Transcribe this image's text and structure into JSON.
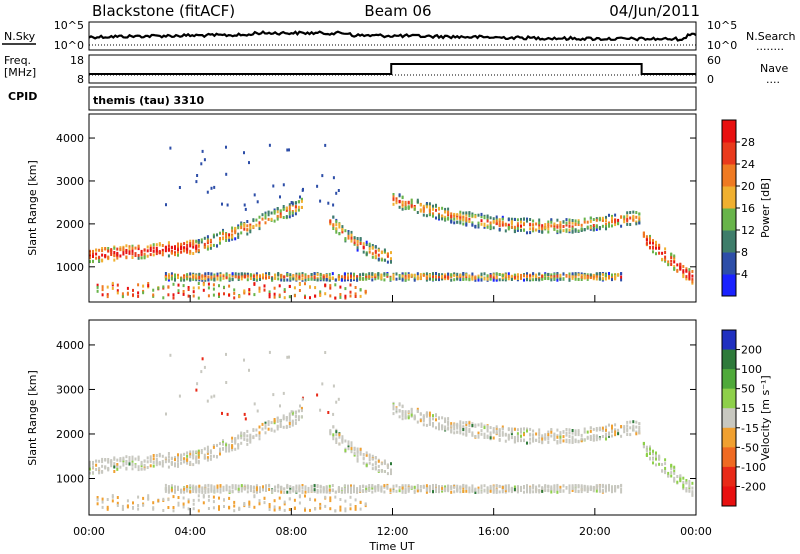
{
  "header": {
    "station": "Blackstone (fitACF)",
    "beam": "Beam 06",
    "date": "04/Jun/2011"
  },
  "noise_panel": {
    "left_label": "N.Sky",
    "left_ticks": [
      "10^5",
      "10^0"
    ],
    "right_ticks": [
      "10^5",
      "10^0"
    ],
    "right_label": "N.Search",
    "right_legend": "........"
  },
  "freq_panel": {
    "left_label_line1": "Freq.",
    "left_label_line2": "[MHz]",
    "left_ticks": [
      "18",
      "8"
    ],
    "right_ticks": [
      "60",
      "0"
    ],
    "right_label": "Nave",
    "right_legend": "...."
  },
  "cpid": {
    "label": "CPID",
    "value": "themis (tau) 3310"
  },
  "x_axis": {
    "label": "Time UT",
    "ticks": [
      "00:00",
      "04:00",
      "08:00",
      "12:00",
      "16:00",
      "20:00",
      "00:00"
    ]
  },
  "chart_data": [
    {
      "type": "heatmap",
      "title": "",
      "ylabel": "Slant Range [km]",
      "y_ticks": [
        "1000",
        "2000",
        "3000",
        "4000"
      ],
      "ylim": [
        180,
        4560
      ],
      "xlim_hours": [
        0,
        24
      ],
      "colorbar": {
        "label": "Power [dB]",
        "ticks": [
          "4",
          "8",
          "12",
          "16",
          "20",
          "24",
          "28"
        ],
        "colors": [
          "#1a22ff",
          "#2d4ea8",
          "#3e7d6a",
          "#68b44a",
          "#f0b030",
          "#ef7a22",
          "#e93a1c",
          "#e81010"
        ]
      },
      "echo_bands": [
        {
          "name": "f-region main",
          "t0": 0,
          "t1": 4.3,
          "r_center": 1300,
          "r_start_end": [
            1300,
            1500
          ]
        },
        {
          "name": "f-region rising",
          "t0": 4.3,
          "t1": 8.5,
          "r_center": 1500,
          "r_start_end": [
            1500,
            2500
          ]
        },
        {
          "name": "evening arc",
          "t0": 9.5,
          "t1": 11.9,
          "r_center": 1600,
          "r_start_end": [
            2100,
            1300
          ]
        },
        {
          "name": "night band",
          "t0": 12,
          "t1": 21.8,
          "r_center": 1900,
          "r_start_end": [
            2500,
            2100
          ]
        },
        {
          "name": "low range band",
          "t0": 3,
          "t1": 21,
          "r_center": 800,
          "r_start_end": [
            800,
            800
          ]
        },
        {
          "name": "early morning",
          "t0": 21.9,
          "t1": 24,
          "r_center": 1300,
          "r_start_end": [
            1700,
            700
          ]
        }
      ]
    },
    {
      "type": "heatmap",
      "title": "",
      "ylabel": "Slant Range [km]",
      "y_ticks": [
        "1000",
        "2000",
        "3000",
        "4000"
      ],
      "ylim": [
        180,
        4560
      ],
      "xlim_hours": [
        0,
        24
      ],
      "colorbar": {
        "label": "Velocity [m s⁻¹]",
        "ticks": [
          "200",
          "100",
          "50",
          "15",
          "-15",
          "-50",
          "-100",
          "-200"
        ],
        "colors": [
          "#2030c0",
          "#2e7a3a",
          "#4fa93a",
          "#8ed04a",
          "#c8c8c0",
          "#f0a030",
          "#ef6a22",
          "#e82a18",
          "#e81010"
        ]
      }
    }
  ],
  "colors": {
    "ground_scatter": "#c8c8c0",
    "outline": "#000000"
  }
}
